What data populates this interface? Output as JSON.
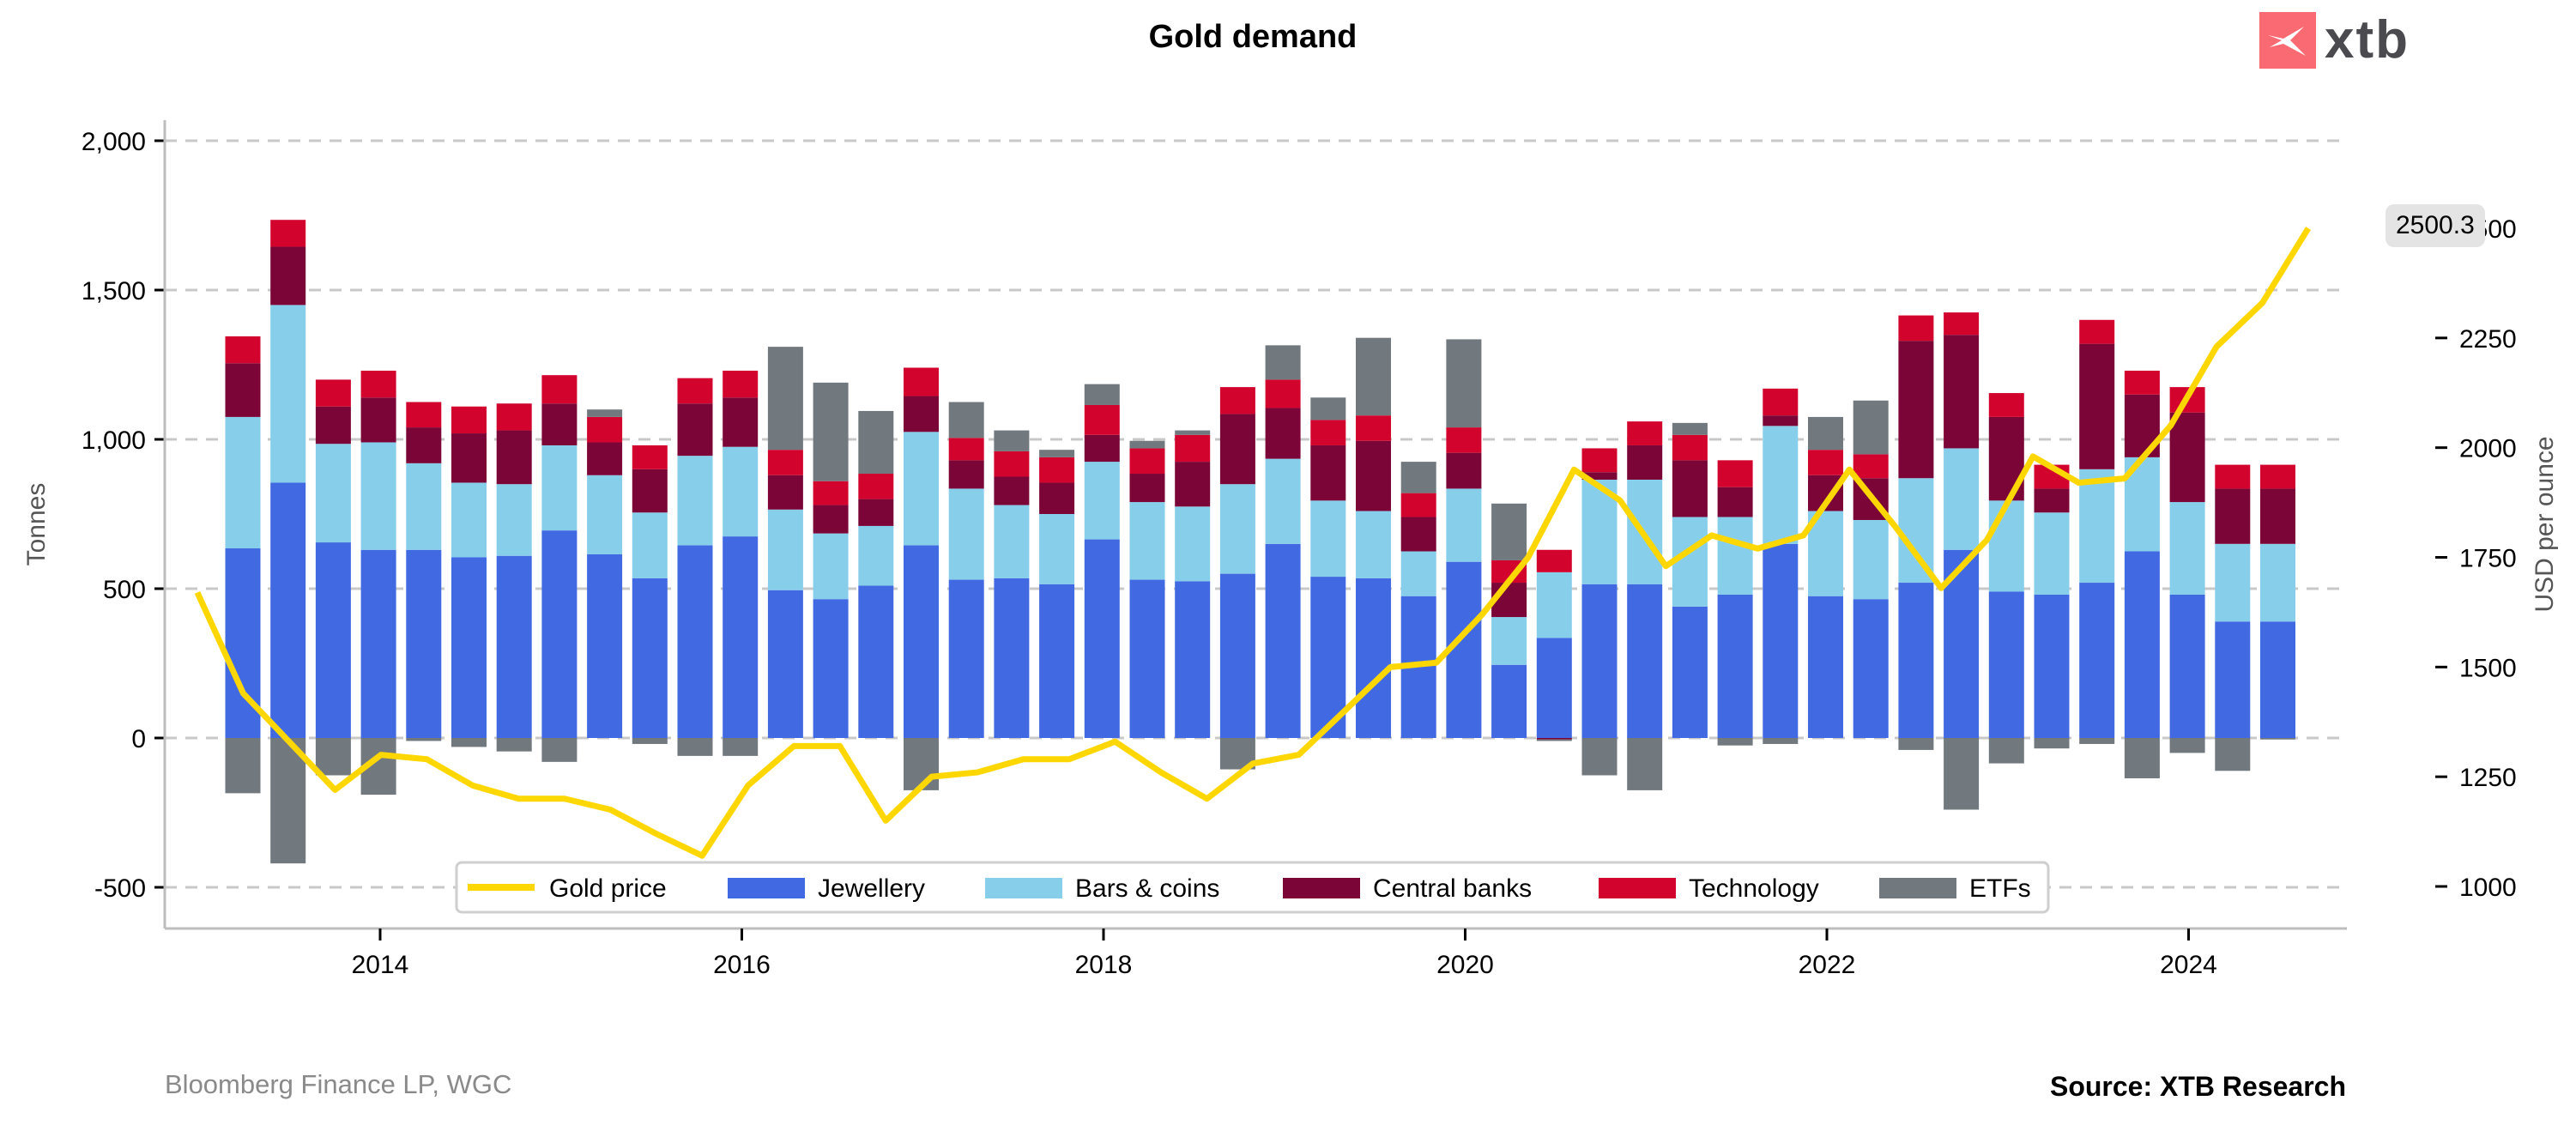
{
  "header": {
    "title": "Gold demand",
    "brand": "xtb"
  },
  "footer": {
    "data_source": "Bloomberg Finance LP, WGC",
    "source": "Source: XTB Research"
  },
  "last_price_badge": "2500.3",
  "colors": {
    "gold_price": "#FFD700",
    "jewellery": "#4169E1",
    "bars_coins": "#87CEEB",
    "central_banks": "#7B0536",
    "technology": "#D2042D",
    "etfs": "#71797E",
    "brand": "#F96A73"
  },
  "chart_data": {
    "type": "bar",
    "subtype": "stacked-bar-with-line",
    "title": "Gold demand",
    "xlabel": "",
    "ylabel": "Tonnes",
    "y2label": "USD per ounce",
    "ylim": [
      -650,
      2080
    ],
    "y2lim": [
      950,
      2580
    ],
    "yticks": [
      -500,
      0,
      500,
      1000,
      1500,
      2000
    ],
    "ytick_labels": [
      "-500",
      "0",
      "500",
      "1,000",
      "1,500",
      "2,000"
    ],
    "y2ticks": [
      1000,
      1250,
      1500,
      1750,
      2000,
      2250,
      2500
    ],
    "y2tick_labels": [
      "1000",
      "1250",
      "1500",
      "1750",
      "2000",
      "2250",
      "2500"
    ],
    "xticks": [
      "2014",
      "2016",
      "2018",
      "2020",
      "2022",
      "2024"
    ],
    "grid": "horizontal-dashed",
    "legend": {
      "placement": "bottom-center",
      "entries": [
        "Gold price",
        "Jewellery",
        "Bars & coins",
        "Central banks",
        "Technology",
        "ETFs"
      ]
    },
    "categories": [
      "2013Q2",
      "2013Q3",
      "2013Q4",
      "2014Q1",
      "2014Q2",
      "2014Q3",
      "2014Q4",
      "2015Q1",
      "2015Q2",
      "2015Q3",
      "2015Q4",
      "2016Q1",
      "2016Q2",
      "2016Q3",
      "2016Q4",
      "2017Q1",
      "2017Q2",
      "2017Q3",
      "2017Q4",
      "2018Q1",
      "2018Q2",
      "2018Q3",
      "2018Q4",
      "2019Q1",
      "2019Q2",
      "2019Q3",
      "2019Q4",
      "2020Q1",
      "2020Q2",
      "2020Q3",
      "2020Q4",
      "2021Q1",
      "2021Q2",
      "2021Q3",
      "2021Q4",
      "2022Q1",
      "2022Q2",
      "2022Q3",
      "2022Q4",
      "2023Q1",
      "2023Q2",
      "2023Q3",
      "2023Q4",
      "2024Q1",
      "2024Q2",
      "2024Q3"
    ],
    "series": [
      {
        "name": "Jewellery",
        "values": [
          635,
          855,
          655,
          630,
          630,
          605,
          610,
          695,
          615,
          535,
          645,
          675,
          495,
          465,
          510,
          645,
          530,
          535,
          515,
          665,
          530,
          525,
          550,
          650,
          540,
          535,
          475,
          590,
          245,
          335,
          515,
          515,
          440,
          480,
          650,
          475,
          465,
          520,
          630,
          490,
          480,
          520,
          625,
          480,
          390,
          390
        ]
      },
      {
        "name": "Bars & coins",
        "values": [
          440,
          595,
          330,
          360,
          290,
          250,
          240,
          285,
          265,
          220,
          300,
          300,
          270,
          220,
          200,
          380,
          305,
          245,
          235,
          260,
          260,
          250,
          300,
          285,
          255,
          225,
          150,
          245,
          160,
          220,
          350,
          350,
          300,
          260,
          395,
          285,
          265,
          350,
          340,
          305,
          275,
          380,
          315,
          310,
          260,
          260
        ]
      },
      {
        "name": "Central banks",
        "values": [
          180,
          195,
          125,
          150,
          120,
          165,
          180,
          140,
          110,
          145,
          175,
          165,
          115,
          95,
          90,
          120,
          95,
          95,
          105,
          90,
          95,
          150,
          235,
          170,
          185,
          235,
          115,
          120,
          115,
          -5,
          25,
          115,
          190,
          100,
          35,
          120,
          140,
          460,
          380,
          280,
          80,
          420,
          210,
          300,
          185,
          185
        ]
      },
      {
        "name": "Technology",
        "values": [
          90,
          90,
          90,
          90,
          85,
          90,
          90,
          95,
          85,
          80,
          85,
          90,
          85,
          80,
          85,
          95,
          75,
          85,
          85,
          100,
          85,
          90,
          90,
          95,
          85,
          85,
          80,
          85,
          75,
          75,
          80,
          80,
          85,
          90,
          90,
          85,
          80,
          85,
          75,
          80,
          80,
          80,
          80,
          85,
          80,
          80
        ]
      },
      {
        "name": "ETFs",
        "values": [
          -185,
          -420,
          -125,
          -190,
          -10,
          -30,
          -45,
          -80,
          25,
          -20,
          -60,
          -60,
          345,
          330,
          210,
          -175,
          120,
          70,
          25,
          70,
          25,
          15,
          -105,
          115,
          75,
          260,
          105,
          295,
          190,
          -5,
          -125,
          -175,
          40,
          -25,
          -20,
          110,
          180,
          -40,
          -240,
          -85,
          -35,
          -20,
          -135,
          -50,
          -110,
          -5
        ]
      },
      {
        "name": "Gold price",
        "axis": "right",
        "x": [
          "2013Q1",
          "2013Q2",
          "2013Q3",
          "2013Q4",
          "2014Q1",
          "2014Q2",
          "2014Q3",
          "2014Q4",
          "2015Q1",
          "2015Q2",
          "2015Q3",
          "2015Q4",
          "2016Q1",
          "2016Q2",
          "2016Q3",
          "2016Q4",
          "2017Q1",
          "2017Q2",
          "2017Q3",
          "2017Q4",
          "2018Q1",
          "2018Q2",
          "2018Q3",
          "2018Q4",
          "2019Q1",
          "2019Q2",
          "2019Q3",
          "2019Q4",
          "2020Q1",
          "2020Q2",
          "2020Q3",
          "2020Q4",
          "2021Q1",
          "2021Q2",
          "2021Q3",
          "2021Q4",
          "2022Q1",
          "2022Q2",
          "2022Q3",
          "2022Q4",
          "2023Q1",
          "2023Q2",
          "2023Q3",
          "2023Q4",
          "2024Q1",
          "2024Q2",
          "2024Q3"
        ],
        "values": [
          1670,
          1440,
          1330,
          1220,
          1300,
          1290,
          1230,
          1200,
          1200,
          1175,
          1120,
          1070,
          1230,
          1320,
          1320,
          1150,
          1250,
          1260,
          1290,
          1290,
          1330,
          1260,
          1200,
          1280,
          1300,
          1400,
          1500,
          1510,
          1620,
          1750,
          1950,
          1880,
          1730,
          1800,
          1770,
          1800,
          1950,
          1820,
          1680,
          1790,
          1980,
          1920,
          1930,
          2050,
          2230,
          2330,
          2500
        ]
      }
    ]
  }
}
